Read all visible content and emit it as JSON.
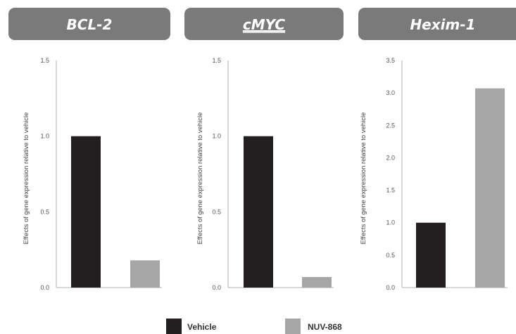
{
  "chart_data": [
    {
      "type": "bar",
      "title": "BCL-2",
      "title_underline": false,
      "ylabel": "Effects of gene expression relative to vehicle",
      "ylim": [
        0,
        1.5
      ],
      "yticks": [
        "0.0",
        "0.5",
        "1.0",
        "1.5"
      ],
      "categories": [
        "Vehicle",
        "NUV-868"
      ],
      "values": [
        1.0,
        0.18
      ]
    },
    {
      "type": "bar",
      "title": "cMYC",
      "title_underline": true,
      "ylabel": "Effects of gene expression relative to vehicle",
      "ylim": [
        0,
        1.5
      ],
      "yticks": [
        "0.0",
        "0.5",
        "1.0",
        "1.5"
      ],
      "categories": [
        "Vehicle",
        "NUV-868"
      ],
      "values": [
        1.0,
        0.07
      ]
    },
    {
      "type": "bar",
      "title": "Hexim-1",
      "title_underline": false,
      "ylabel": "Effects of gene expression relative to vehicle",
      "ylim": [
        0,
        3.5
      ],
      "yticks": [
        "0.0",
        "0.5",
        "1.0",
        "1.5",
        "2.0",
        "2.5",
        "3.0",
        "3.5"
      ],
      "categories": [
        "Vehicle",
        "NUV-868"
      ],
      "values": [
        1.0,
        3.07
      ]
    }
  ],
  "legend": {
    "placement": "bottom",
    "items": [
      {
        "label": "Vehicle",
        "color": "#231f20"
      },
      {
        "label": "NUV-868",
        "color": "#a6a6a6"
      }
    ]
  },
  "colors": {
    "header_bg": "#7a7a7a",
    "header_text": "#ffffff",
    "axis": "#b0b0b0"
  }
}
